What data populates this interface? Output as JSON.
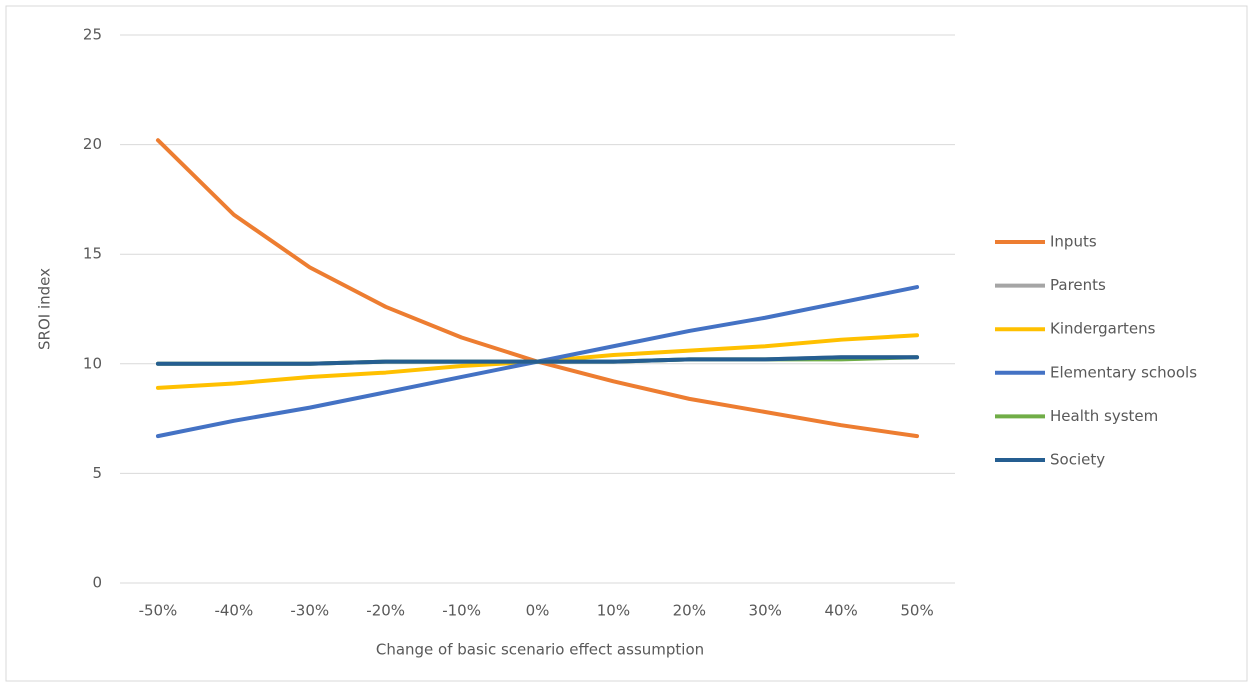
{
  "chart_data": {
    "type": "line",
    "xlabel": "Change of basic scenario effect assumption",
    "ylabel": "SROI index",
    "categories": [
      "-50%",
      "-40%",
      "-30%",
      "-20%",
      "-10%",
      "0%",
      "10%",
      "20%",
      "30%",
      "40%",
      "50%"
    ],
    "ylim": [
      0,
      25
    ],
    "yticks": [
      0,
      5,
      10,
      15,
      20,
      25
    ],
    "grid": true,
    "legend": "right",
    "series": [
      {
        "name": "Inputs",
        "color": "#ed7d31",
        "values": [
          20.2,
          16.8,
          14.4,
          12.6,
          11.2,
          10.1,
          9.2,
          8.4,
          7.8,
          7.2,
          6.7
        ]
      },
      {
        "name": "Parents",
        "color": "#a5a5a5",
        "values": [
          10.0,
          10.0,
          10.0,
          10.1,
          10.1,
          10.1,
          10.1,
          10.2,
          10.2,
          10.3,
          10.3
        ]
      },
      {
        "name": "Kindergartens",
        "color": "#ffc000",
        "values": [
          8.9,
          9.1,
          9.4,
          9.6,
          9.9,
          10.1,
          10.4,
          10.6,
          10.8,
          11.1,
          11.3
        ]
      },
      {
        "name": "Elementary schools",
        "color": "#4472c4",
        "values": [
          6.7,
          7.4,
          8.0,
          8.7,
          9.4,
          10.1,
          10.8,
          11.5,
          12.1,
          12.8,
          13.5
        ]
      },
      {
        "name": "Health system",
        "color": "#70ad47",
        "values": [
          10.0,
          10.0,
          10.0,
          10.1,
          10.1,
          10.1,
          10.1,
          10.2,
          10.2,
          10.2,
          10.3
        ]
      },
      {
        "name": "Society",
        "color": "#255e91",
        "values": [
          10.0,
          10.0,
          10.0,
          10.1,
          10.1,
          10.1,
          10.1,
          10.2,
          10.2,
          10.3,
          10.3
        ]
      }
    ]
  }
}
